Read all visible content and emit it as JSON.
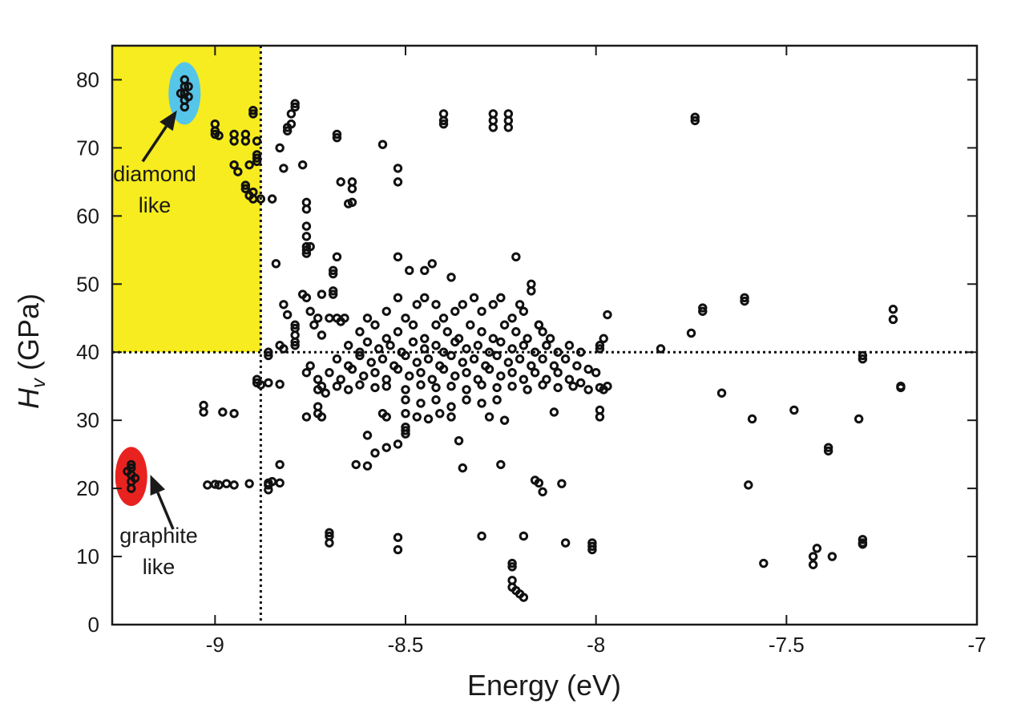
{
  "chart_data": {
    "type": "scatter",
    "title": "",
    "xlabel": "Energy (eV)",
    "ylabel_main": "H",
    "ylabel_sub": "v",
    "ylabel_unit": "(GPa)",
    "xlim": [
      -9.27,
      -7.0
    ],
    "ylim": [
      0,
      85
    ],
    "xticks": [
      -9,
      -8.5,
      -8,
      -7.5,
      -7
    ],
    "xtick_labels": [
      "-9",
      "-8.5",
      "-8",
      "-7.5",
      "-7"
    ],
    "yticks": [
      0,
      10,
      20,
      30,
      40,
      50,
      60,
      70,
      80
    ],
    "ytick_labels": [
      "0",
      "10",
      "20",
      "30",
      "40",
      "50",
      "60",
      "70",
      "80"
    ],
    "grid": false,
    "threshold_energy": -8.88,
    "threshold_hardness": 40,
    "region": {
      "x": [
        -9.27,
        -8.88
      ],
      "y": [
        40,
        85
      ],
      "color": "#f6ec1f"
    },
    "marker_color": "#111111",
    "annotations": [
      {
        "id": "diamond",
        "lines": [
          "diamond",
          "like"
        ],
        "cluster_x": -9.08,
        "cluster_y": [
          76,
          80
        ],
        "highlight_color": "#56c5ea",
        "arrow_to": [
          -9.1,
          75.5
        ],
        "arrow_from": [
          -9.19,
          68
        ]
      },
      {
        "id": "graphite",
        "lines": [
          "graphite",
          "like"
        ],
        "cluster_x": -9.22,
        "cluster_y": [
          20,
          23.5
        ],
        "highlight_color": "#e8231f",
        "arrow_to": [
          -9.17,
          22
        ],
        "arrow_from": [
          -9.11,
          14
        ]
      }
    ],
    "points": [
      [
        -9.08,
        76
      ],
      [
        -9.08,
        77
      ],
      [
        -9.08,
        78
      ],
      [
        -9.08,
        79
      ],
      [
        -9.08,
        80
      ],
      [
        -9.07,
        77.5
      ],
      [
        -9.07,
        79
      ],
      [
        -9.09,
        78
      ],
      [
        -9.22,
        20
      ],
      [
        -9.22,
        21
      ],
      [
        -9.22,
        22
      ],
      [
        -9.22,
        23
      ],
      [
        -9.22,
        23.5
      ],
      [
        -9.21,
        21.5
      ],
      [
        -9.23,
        22.5
      ],
      [
        -9.0,
        73.5
      ],
      [
        -9.0,
        72.5
      ],
      [
        -9.0,
        72
      ],
      [
        -8.99,
        71.8
      ],
      [
        -8.95,
        72
      ],
      [
        -8.95,
        71
      ],
      [
        -8.92,
        72
      ],
      [
        -8.92,
        71
      ],
      [
        -8.95,
        67.5
      ],
      [
        -8.94,
        66.5
      ],
      [
        -8.92,
        64.5
      ],
      [
        -8.92,
        64
      ],
      [
        -8.91,
        63
      ],
      [
        -8.9,
        62.5
      ],
      [
        -8.9,
        63.5
      ],
      [
        -8.91,
        67.5
      ],
      [
        -8.9,
        75
      ],
      [
        -8.9,
        75.5
      ],
      [
        -8.89,
        71
      ],
      [
        -8.89,
        69
      ],
      [
        -8.89,
        68.5
      ],
      [
        -8.89,
        68
      ],
      [
        -8.88,
        62.5
      ],
      [
        -8.85,
        62.5
      ],
      [
        -8.79,
        76.5
      ],
      [
        -8.79,
        76
      ],
      [
        -8.8,
        75
      ],
      [
        -8.8,
        73.5
      ],
      [
        -8.81,
        73
      ],
      [
        -8.81,
        72.5
      ],
      [
        -8.83,
        70
      ],
      [
        -8.77,
        67.5
      ],
      [
        -8.82,
        67
      ],
      [
        -8.68,
        72
      ],
      [
        -8.68,
        71.5
      ],
      [
        -8.67,
        65
      ],
      [
        -8.64,
        65
      ],
      [
        -8.64,
        64
      ],
      [
        -8.64,
        62
      ],
      [
        -8.65,
        61.8
      ],
      [
        -8.76,
        62
      ],
      [
        -8.76,
        61
      ],
      [
        -8.76,
        58.5
      ],
      [
        -8.76,
        57
      ],
      [
        -8.76,
        55.5
      ],
      [
        -8.76,
        55
      ],
      [
        -8.76,
        54.5
      ],
      [
        -8.75,
        55.5
      ],
      [
        -8.84,
        53
      ],
      [
        -8.68,
        54
      ],
      [
        -8.69,
        52
      ],
      [
        -8.69,
        51.5
      ],
      [
        -8.69,
        49
      ],
      [
        -8.69,
        48.5
      ],
      [
        -8.77,
        48.5
      ],
      [
        -8.76,
        48
      ],
      [
        -8.72,
        48.5
      ],
      [
        -8.82,
        47
      ],
      [
        -8.81,
        45.5
      ],
      [
        -8.79,
        44
      ],
      [
        -8.79,
        43.5
      ],
      [
        -8.79,
        42.5
      ],
      [
        -8.79,
        41.5
      ],
      [
        -8.79,
        41
      ],
      [
        -8.82,
        40.5
      ],
      [
        -8.83,
        41
      ],
      [
        -8.75,
        46
      ],
      [
        -8.74,
        44
      ],
      [
        -8.73,
        45
      ],
      [
        -8.72,
        42.5
      ],
      [
        -8.7,
        45
      ],
      [
        -8.68,
        45
      ],
      [
        -8.67,
        44.5
      ],
      [
        -8.66,
        45
      ],
      [
        -8.86,
        40
      ],
      [
        -8.86,
        39.5
      ],
      [
        -8.75,
        38
      ],
      [
        -8.76,
        37
      ],
      [
        -8.73,
        36
      ],
      [
        -8.72,
        35
      ],
      [
        -8.73,
        34.5
      ],
      [
        -8.71,
        34
      ],
      [
        -8.89,
        35.5
      ],
      [
        -8.89,
        36
      ],
      [
        -8.88,
        35.2
      ],
      [
        -8.86,
        35.5
      ],
      [
        -8.83,
        35.3
      ],
      [
        -8.73,
        32
      ],
      [
        -8.73,
        31
      ],
      [
        -8.72,
        30.5
      ],
      [
        -8.76,
        30.5
      ],
      [
        -9.03,
        32.2
      ],
      [
        -9.03,
        31.2
      ],
      [
        -8.98,
        31.2
      ],
      [
        -8.95,
        31
      ],
      [
        -9.02,
        20.5
      ],
      [
        -9.0,
        20.6
      ],
      [
        -8.99,
        20.5
      ],
      [
        -8.97,
        20.7
      ],
      [
        -8.95,
        20.5
      ],
      [
        -8.91,
        20.7
      ],
      [
        -8.86,
        20.8
      ],
      [
        -8.86,
        20.5
      ],
      [
        -8.85,
        21
      ],
      [
        -8.83,
        20.8
      ],
      [
        -8.86,
        19.8
      ],
      [
        -8.83,
        23.5
      ],
      [
        -8.7,
        13.5
      ],
      [
        -8.7,
        13
      ],
      [
        -8.7,
        12
      ],
      [
        -8.56,
        70.5
      ],
      [
        -8.52,
        67
      ],
      [
        -8.52,
        65
      ],
      [
        -8.52,
        54
      ],
      [
        -8.49,
        52
      ],
      [
        -8.45,
        52
      ],
      [
        -8.43,
        53
      ],
      [
        -8.38,
        51
      ],
      [
        -8.4,
        75
      ],
      [
        -8.4,
        74
      ],
      [
        -8.4,
        73.5
      ],
      [
        -8.27,
        75
      ],
      [
        -8.27,
        74
      ],
      [
        -8.27,
        73
      ],
      [
        -8.23,
        75
      ],
      [
        -8.23,
        74
      ],
      [
        -8.23,
        73
      ],
      [
        -8.21,
        54
      ],
      [
        -8.17,
        50
      ],
      [
        -8.17,
        49
      ],
      [
        -8.19,
        46
      ],
      [
        -8.15,
        44
      ],
      [
        -8.14,
        43
      ],
      [
        -8.12,
        42
      ],
      [
        -8.13,
        41
      ],
      [
        -8.6,
        45
      ],
      [
        -8.55,
        46
      ],
      [
        -8.52,
        48
      ],
      [
        -8.5,
        45
      ],
      [
        -8.47,
        47
      ],
      [
        -8.45,
        48
      ],
      [
        -8.42,
        47
      ],
      [
        -8.4,
        45
      ],
      [
        -8.37,
        46
      ],
      [
        -8.35,
        47
      ],
      [
        -8.32,
        48
      ],
      [
        -8.3,
        46
      ],
      [
        -8.27,
        47
      ],
      [
        -8.25,
        48
      ],
      [
        -8.22,
        45
      ],
      [
        -8.2,
        47
      ],
      [
        -8.62,
        43
      ],
      [
        -8.58,
        44
      ],
      [
        -8.55,
        42
      ],
      [
        -8.52,
        43
      ],
      [
        -8.48,
        44
      ],
      [
        -8.45,
        42
      ],
      [
        -8.42,
        44
      ],
      [
        -8.39,
        43
      ],
      [
        -8.36,
        42
      ],
      [
        -8.33,
        44
      ],
      [
        -8.3,
        43
      ],
      [
        -8.27,
        42
      ],
      [
        -8.24,
        44
      ],
      [
        -8.21,
        43
      ],
      [
        -8.18,
        42
      ],
      [
        -8.15,
        44
      ],
      [
        -8.65,
        41
      ],
      [
        -8.62,
        40
      ],
      [
        -8.6,
        41.5
      ],
      [
        -8.57,
        40.5
      ],
      [
        -8.54,
        41
      ],
      [
        -8.51,
        40
      ],
      [
        -8.48,
        41.5
      ],
      [
        -8.45,
        40.5
      ],
      [
        -8.42,
        41
      ],
      [
        -8.4,
        40
      ],
      [
        -8.37,
        41.5
      ],
      [
        -8.34,
        40.5
      ],
      [
        -8.31,
        41
      ],
      [
        -8.28,
        40
      ],
      [
        -8.25,
        41.5
      ],
      [
        -8.22,
        40.5
      ],
      [
        -8.19,
        41
      ],
      [
        -8.16,
        40
      ],
      [
        -8.13,
        41
      ],
      [
        -8.1,
        40
      ],
      [
        -8.07,
        41
      ],
      [
        -8.04,
        40
      ],
      [
        -8.68,
        39
      ],
      [
        -8.65,
        38
      ],
      [
        -8.62,
        39.5
      ],
      [
        -8.59,
        38.5
      ],
      [
        -8.56,
        39
      ],
      [
        -8.53,
        38
      ],
      [
        -8.5,
        39.5
      ],
      [
        -8.47,
        38.5
      ],
      [
        -8.44,
        39
      ],
      [
        -8.41,
        38
      ],
      [
        -8.38,
        39.5
      ],
      [
        -8.35,
        38.5
      ],
      [
        -8.32,
        39
      ],
      [
        -8.29,
        38
      ],
      [
        -8.26,
        39.5
      ],
      [
        -8.23,
        38.5
      ],
      [
        -8.2,
        39
      ],
      [
        -8.17,
        38
      ],
      [
        -8.14,
        39
      ],
      [
        -8.11,
        38
      ],
      [
        -8.08,
        39
      ],
      [
        -8.05,
        38
      ],
      [
        -8.02,
        37.5
      ],
      [
        -8.0,
        37
      ],
      [
        -8.7,
        37
      ],
      [
        -8.67,
        36
      ],
      [
        -8.64,
        37.5
      ],
      [
        -8.61,
        36.5
      ],
      [
        -8.58,
        37
      ],
      [
        -8.55,
        36
      ],
      [
        -8.52,
        37.5
      ],
      [
        -8.49,
        36.5
      ],
      [
        -8.46,
        37
      ],
      [
        -8.43,
        36
      ],
      [
        -8.4,
        37.5
      ],
      [
        -8.37,
        36.5
      ],
      [
        -8.34,
        37
      ],
      [
        -8.31,
        36
      ],
      [
        -8.28,
        37.5
      ],
      [
        -8.25,
        36.5
      ],
      [
        -8.22,
        37
      ],
      [
        -8.19,
        36
      ],
      [
        -8.16,
        37
      ],
      [
        -8.13,
        36
      ],
      [
        -8.1,
        37
      ],
      [
        -8.07,
        36
      ],
      [
        -8.04,
        35.5
      ],
      [
        -8.68,
        35
      ],
      [
        -8.65,
        34.5
      ],
      [
        -8.62,
        35.2
      ],
      [
        -8.58,
        34.8
      ],
      [
        -8.55,
        35
      ],
      [
        -8.5,
        34.5
      ],
      [
        -8.46,
        35.2
      ],
      [
        -8.42,
        34.8
      ],
      [
        -8.38,
        35
      ],
      [
        -8.34,
        34.5
      ],
      [
        -8.3,
        35.2
      ],
      [
        -8.26,
        34.8
      ],
      [
        -8.22,
        35
      ],
      [
        -8.18,
        34.5
      ],
      [
        -8.14,
        35.2
      ],
      [
        -8.1,
        34.8
      ],
      [
        -8.06,
        35
      ],
      [
        -8.02,
        34.5
      ],
      [
        -7.99,
        34.8
      ],
      [
        -8.5,
        33
      ],
      [
        -8.46,
        32.5
      ],
      [
        -8.42,
        33
      ],
      [
        -8.38,
        32
      ],
      [
        -8.34,
        33
      ],
      [
        -8.3,
        32.5
      ],
      [
        -8.26,
        33
      ],
      [
        -8.56,
        31
      ],
      [
        -8.55,
        30.5
      ],
      [
        -8.5,
        31
      ],
      [
        -8.47,
        30.5
      ],
      [
        -8.44,
        30.2
      ],
      [
        -8.41,
        31
      ],
      [
        -8.38,
        30.5
      ],
      [
        -8.28,
        30.5
      ],
      [
        -8.24,
        30
      ],
      [
        -8.11,
        31.2
      ],
      [
        -8.5,
        28
      ],
      [
        -8.5,
        28.5
      ],
      [
        -8.5,
        29
      ],
      [
        -8.36,
        27
      ],
      [
        -8.6,
        27.8
      ],
      [
        -8.55,
        26
      ],
      [
        -8.52,
        26.5
      ],
      [
        -8.58,
        25.2
      ],
      [
        -8.63,
        23.5
      ],
      [
        -8.6,
        23.3
      ],
      [
        -8.35,
        23
      ],
      [
        -8.25,
        23.5
      ],
      [
        -8.16,
        21.2
      ],
      [
        -8.15,
        20.8
      ],
      [
        -8.14,
        19.5
      ],
      [
        -8.09,
        20.7
      ],
      [
        -8.52,
        12.8
      ],
      [
        -8.52,
        11
      ],
      [
        -8.3,
        13
      ],
      [
        -8.19,
        13
      ],
      [
        -8.08,
        12
      ],
      [
        -8.01,
        12
      ],
      [
        -8.01,
        11.5
      ],
      [
        -8.01,
        11
      ],
      [
        -8.22,
        9
      ],
      [
        -8.22,
        8.5
      ],
      [
        -8.22,
        6.5
      ],
      [
        -8.22,
        5.5
      ],
      [
        -8.21,
        5
      ],
      [
        -8.2,
        4.5
      ],
      [
        -8.19,
        4
      ],
      [
        -7.98,
        42
      ],
      [
        -7.99,
        41
      ],
      [
        -7.99,
        40.5
      ],
      [
        -7.97,
        45.5
      ],
      [
        -7.97,
        35
      ],
      [
        -7.98,
        34.5
      ],
      [
        -7.99,
        31.5
      ],
      [
        -7.99,
        30.5
      ],
      [
        -7.83,
        40.5
      ],
      [
        -7.75,
        42.8
      ],
      [
        -7.74,
        74.5
      ],
      [
        -7.74,
        74
      ],
      [
        -7.72,
        46.5
      ],
      [
        -7.72,
        46
      ],
      [
        -7.67,
        34
      ],
      [
        -7.61,
        48
      ],
      [
        -7.61,
        47.5
      ],
      [
        -7.6,
        20.5
      ],
      [
        -7.59,
        30.2
      ],
      [
        -7.56,
        9
      ],
      [
        -7.48,
        31.5
      ],
      [
        -7.43,
        10
      ],
      [
        -7.43,
        8.8
      ],
      [
        -7.42,
        11.2
      ],
      [
        -7.39,
        26
      ],
      [
        -7.39,
        25.5
      ],
      [
        -7.38,
        10
      ],
      [
        -7.31,
        30.2
      ],
      [
        -7.3,
        39
      ],
      [
        -7.3,
        39.5
      ],
      [
        -7.3,
        12.5
      ],
      [
        -7.3,
        12
      ],
      [
        -7.3,
        11.8
      ],
      [
        -7.22,
        46.3
      ],
      [
        -7.22,
        44.8
      ],
      [
        -7.2,
        35
      ],
      [
        -7.2,
        34.8
      ]
    ]
  }
}
